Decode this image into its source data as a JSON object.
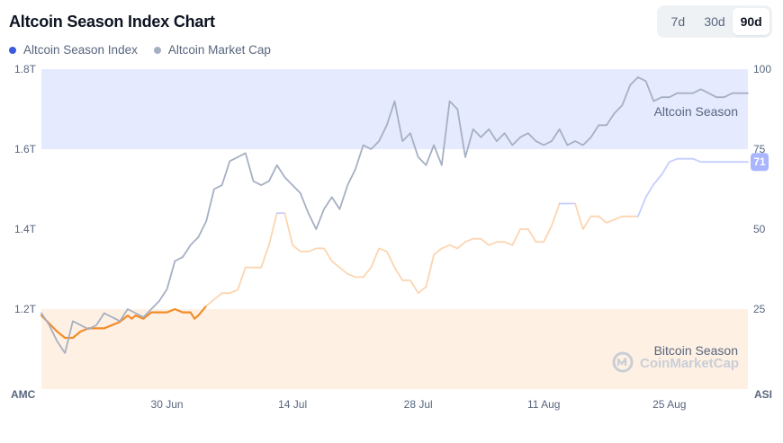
{
  "title": "Altcoin Season Index Chart",
  "ranges": [
    {
      "label": "7d",
      "active": false
    },
    {
      "label": "30d",
      "active": false
    },
    {
      "label": "90d",
      "active": true
    }
  ],
  "legend": [
    {
      "label": "Altcoin Season Index",
      "color": "#3b5bdb"
    },
    {
      "label": "Altcoin Market Cap",
      "color": "#a6b0c3"
    }
  ],
  "zones": {
    "altcoin_label": "Altcoin Season",
    "bitcoin_label": "Bitcoin Season",
    "altcoin_color": "#e6eaff",
    "bitcoin_color": "#fff0e4"
  },
  "watermark": "CoinMarketCap",
  "current_badge": {
    "value": "71",
    "color": "#a9b5ff"
  },
  "chart_data": {
    "type": "line",
    "x_ticks": [
      "30 Jun",
      "14 Jul",
      "28 Jul",
      "11 Aug",
      "25 Aug"
    ],
    "left_axis": {
      "title": "AMC",
      "ticks": [
        "1.8T",
        "1.6T",
        "1.4T",
        "1.2T"
      ],
      "range": [
        1.0,
        1.8
      ]
    },
    "right_axis": {
      "title": "ASI",
      "ticks": [
        "100",
        "75",
        "50",
        "25"
      ],
      "range": [
        0,
        100
      ]
    },
    "x_range": [
      0,
      90
    ],
    "grid": false,
    "legend_position": "top-left",
    "series": [
      {
        "name": "Altcoin Season Index",
        "axis": "right",
        "color_low": "#f28c28",
        "color_low_faded": "#fcd5b0",
        "color_high": "#c5ceff",
        "x": [
          0,
          2,
          3,
          4,
          5,
          6,
          7,
          8,
          9,
          10,
          11,
          11.5,
          12,
          13,
          14,
          15,
          16,
          17,
          18,
          19,
          19.5,
          20,
          21,
          22,
          23,
          24,
          25,
          26,
          27,
          28,
          29,
          30,
          31,
          32,
          33,
          34,
          35,
          36,
          37,
          38,
          39,
          40,
          41,
          42,
          43,
          44,
          45,
          46,
          47,
          48,
          49,
          50,
          51,
          52,
          53,
          54,
          55,
          56,
          57,
          58,
          59,
          60,
          61,
          62,
          63,
          64,
          65,
          66,
          67,
          68,
          69,
          70,
          71,
          72,
          73,
          74,
          75,
          76,
          77,
          78,
          79,
          80,
          81,
          82,
          83,
          84,
          85,
          86,
          87,
          88,
          89,
          90
        ],
        "values": [
          23,
          18,
          16,
          16,
          18,
          19,
          19,
          19,
          20,
          21,
          23,
          22,
          23,
          22,
          24,
          24,
          24,
          25,
          24,
          24,
          22,
          23,
          26,
          28,
          30,
          30,
          31,
          38,
          38,
          38,
          45,
          55,
          55,
          45,
          43,
          43,
          44,
          44,
          40,
          38,
          36,
          35,
          35,
          38,
          44,
          43,
          38,
          34,
          34,
          30,
          32,
          42,
          44,
          45,
          44,
          46,
          47,
          47,
          45,
          46,
          46,
          45,
          50,
          50,
          46,
          46,
          51,
          58,
          58,
          58,
          50,
          54,
          54,
          52,
          53,
          54,
          54,
          54,
          60,
          64,
          67,
          71,
          72,
          72,
          72,
          71,
          71,
          71,
          71,
          71,
          71,
          71
        ]
      },
      {
        "name": "Altcoin Market Cap",
        "axis": "left",
        "color": "#a6b0c3",
        "x": [
          0,
          1,
          2,
          3,
          4,
          5,
          6,
          7,
          8,
          9,
          10,
          11,
          12,
          13,
          14,
          15,
          16,
          17,
          18,
          19,
          20,
          21,
          22,
          23,
          24,
          25,
          26,
          27,
          28,
          29,
          30,
          31,
          32,
          33,
          34,
          35,
          36,
          37,
          38,
          39,
          40,
          41,
          42,
          43,
          44,
          45,
          46,
          47,
          48,
          49,
          50,
          51,
          52,
          53,
          54,
          55,
          56,
          57,
          58,
          59,
          60,
          61,
          62,
          63,
          64,
          65,
          66,
          67,
          68,
          69,
          70,
          71,
          72,
          73,
          74,
          75,
          76,
          77,
          78,
          79,
          80,
          81,
          82,
          83,
          84,
          85,
          86,
          87,
          88,
          89,
          90
        ],
        "values": [
          1.19,
          1.16,
          1.12,
          1.09,
          1.17,
          1.16,
          1.15,
          1.16,
          1.19,
          1.18,
          1.17,
          1.2,
          1.19,
          1.18,
          1.2,
          1.22,
          1.25,
          1.32,
          1.33,
          1.36,
          1.38,
          1.42,
          1.5,
          1.51,
          1.57,
          1.58,
          1.59,
          1.52,
          1.51,
          1.52,
          1.56,
          1.53,
          1.51,
          1.49,
          1.44,
          1.4,
          1.45,
          1.48,
          1.45,
          1.51,
          1.55,
          1.61,
          1.6,
          1.62,
          1.66,
          1.72,
          1.62,
          1.64,
          1.58,
          1.56,
          1.61,
          1.56,
          1.72,
          1.7,
          1.58,
          1.65,
          1.63,
          1.65,
          1.62,
          1.64,
          1.61,
          1.63,
          1.64,
          1.62,
          1.61,
          1.62,
          1.65,
          1.61,
          1.62,
          1.61,
          1.63,
          1.66,
          1.66,
          1.69,
          1.71,
          1.76,
          1.78,
          1.77,
          1.72,
          1.73,
          1.73,
          1.74,
          1.74,
          1.74,
          1.75,
          1.74,
          1.73,
          1.73,
          1.74,
          1.74,
          1.74
        ]
      }
    ]
  }
}
